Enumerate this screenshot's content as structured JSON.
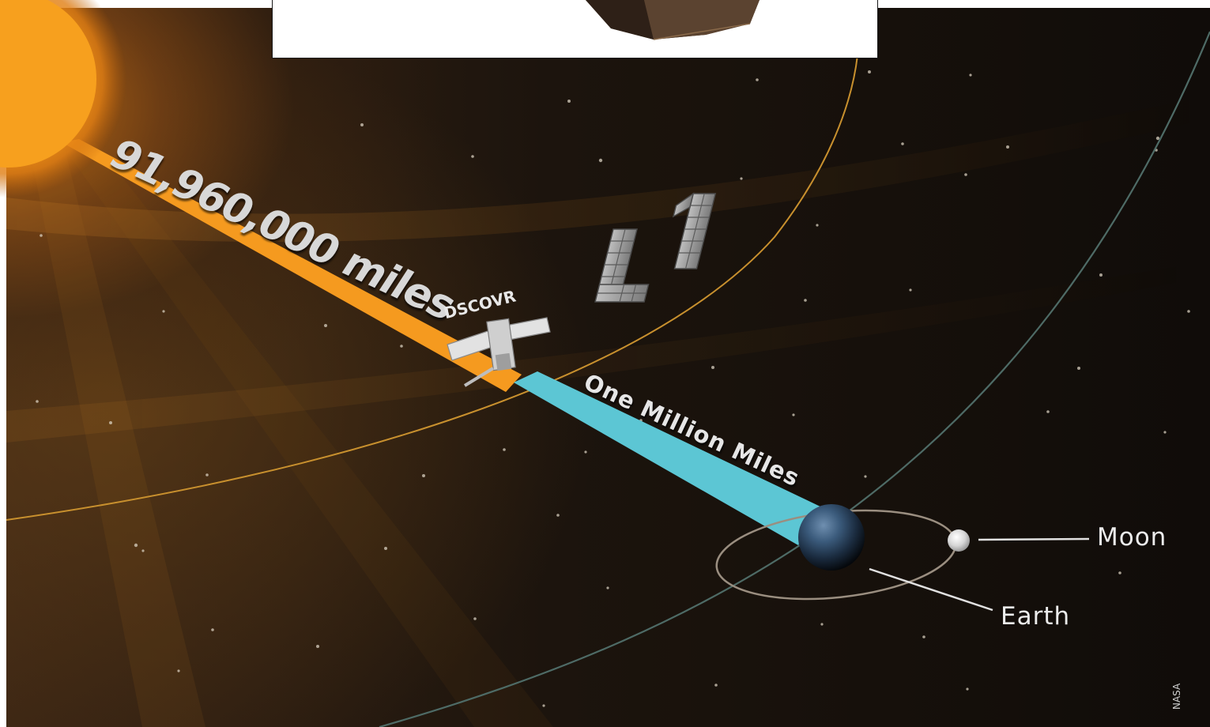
{
  "labels": {
    "sun_distance": "91,960,000 miles",
    "l1_distance": "One Million Miles",
    "lagrange_point": "L1",
    "spacecraft": "DSCOVR",
    "moon": "Moon",
    "earth": "Earth",
    "credit": "NASA"
  },
  "colors": {
    "space": "#140f0b",
    "sun": "#f7a01e",
    "sun_path": "#f59a1f",
    "l1_path": "#5cc6d4",
    "l1_orbit": "#c8902e",
    "earth_orbit": "#4e6b66",
    "moon_orbit": "#9a8e80",
    "text": "#e6e6e6"
  }
}
